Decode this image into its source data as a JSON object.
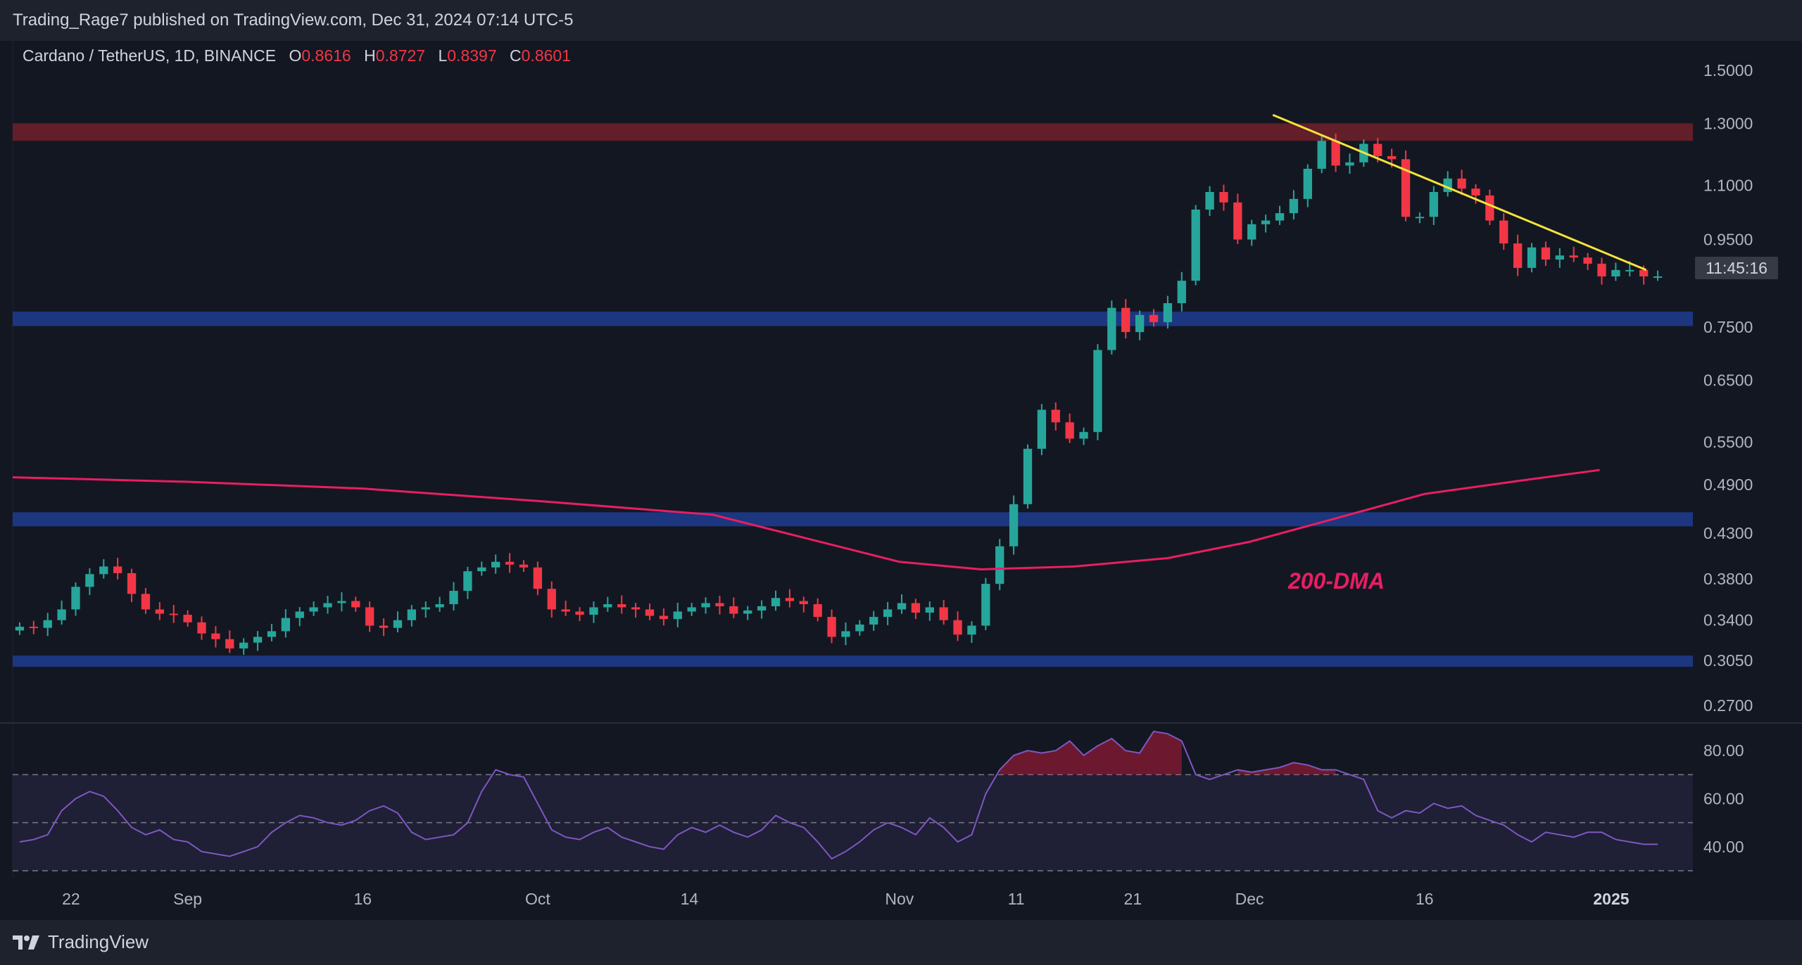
{
  "header": {
    "text": "Trading_Rage7 published on TradingView.com, Dec 31, 2024 07:14 UTC-5"
  },
  "symbol": {
    "name": "Cardano / TetherUS, 1D, BINANCE",
    "o_label": "O",
    "o": "0.8616",
    "h_label": "H",
    "h": "0.8727",
    "l_label": "L",
    "l": "0.8397",
    "c_label": "C",
    "c": "0.8601"
  },
  "countdown": "11:45:16",
  "annotation": "200-DMA",
  "footer": {
    "brand": "TradingView"
  },
  "colors": {
    "up": "#26a69a",
    "down": "#f23645",
    "ma": "#e91e63",
    "trendline": "#f5e33b",
    "support_zone": "#1e3a8a",
    "resistance_zone": "#6b1f2a",
    "rsi": "#7e57c2"
  },
  "chart_data": [
    {
      "type": "candlestick",
      "title": "Cardano / TetherUS, 1D, BINANCE",
      "y_scale": "log",
      "ylim": [
        0.26,
        1.6
      ],
      "y_ticks": [
        "1.5000",
        "1.3000",
        "1.1000",
        "0.9500",
        "0.7500",
        "0.6500",
        "0.5500",
        "0.4900",
        "0.4300",
        "0.3800",
        "0.3400",
        "0.3050",
        "0.2700"
      ],
      "x_ticks": [
        "22",
        "Sep",
        "16",
        "Oct",
        "14",
        "Nov",
        "11",
        "21",
        "Dec",
        "16",
        "2025"
      ],
      "x_tick_dates": [
        "2024-08-22",
        "2024-09-01",
        "2024-09-16",
        "2024-10-01",
        "2024-10-14",
        "2024-11-01",
        "2024-11-11",
        "2024-11-21",
        "2024-12-01",
        "2024-12-16",
        "2025-01-01"
      ],
      "x_range": [
        "2024-08-17",
        "2025-01-08"
      ],
      "candles_close": [
        0.334,
        0.333,
        0.34,
        0.35,
        0.372,
        0.385,
        0.393,
        0.386,
        0.365,
        0.35,
        0.346,
        0.345,
        0.338,
        0.328,
        0.323,
        0.315,
        0.32,
        0.325,
        0.33,
        0.342,
        0.348,
        0.352,
        0.356,
        0.358,
        0.352,
        0.335,
        0.333,
        0.34,
        0.35,
        0.352,
        0.355,
        0.368,
        0.388,
        0.392,
        0.398,
        0.395,
        0.392,
        0.37,
        0.35,
        0.348,
        0.345,
        0.352,
        0.355,
        0.352,
        0.35,
        0.344,
        0.341,
        0.348,
        0.352,
        0.356,
        0.353,
        0.346,
        0.349,
        0.353,
        0.361,
        0.358,
        0.355,
        0.343,
        0.325,
        0.33,
        0.336,
        0.343,
        0.35,
        0.356,
        0.347,
        0.352,
        0.34,
        0.327,
        0.335,
        0.375,
        0.415,
        0.465,
        0.54,
        0.6,
        0.58,
        0.555,
        0.565,
        0.705,
        0.79,
        0.74,
        0.775,
        0.76,
        0.8,
        0.85,
        1.03,
        1.08,
        1.05,
        0.95,
        0.99,
        1.0,
        1.02,
        1.06,
        1.15,
        1.24,
        1.16,
        1.17,
        1.23,
        1.19,
        1.18,
        1.01,
        1.01,
        1.08,
        1.12,
        1.09,
        1.07,
        1.0,
        0.94,
        0.88,
        0.93,
        0.9,
        0.91,
        0.905,
        0.89,
        0.86,
        0.875,
        0.875,
        0.86,
        0.86
      ],
      "annotations": {
        "horizontal_zones": [
          [
            1.24,
            1.3
          ],
          [
            0.752,
            0.782
          ],
          [
            0.438,
            0.455
          ],
          [
            0.301,
            0.309
          ]
        ],
        "trendline": [
          [
            "2024-12-03",
            1.33
          ],
          [
            "2025-01-04",
            0.875
          ]
        ]
      }
    },
    {
      "type": "line",
      "series_label": "200-DMA",
      "x": [
        "2024-08-17",
        "2024-09-01",
        "2024-09-16",
        "2024-10-01",
        "2024-10-16",
        "2024-11-01",
        "2024-11-08",
        "2024-11-16",
        "2024-11-24",
        "2024-12-01",
        "2024-12-08",
        "2024-12-16",
        "2024-12-24",
        "2024-12-31"
      ],
      "values": [
        0.5,
        0.494,
        0.485,
        0.469,
        0.452,
        0.398,
        0.39,
        0.393,
        0.402,
        0.42,
        0.446,
        0.478,
        0.495,
        0.51
      ]
    },
    {
      "type": "line",
      "title": "RSI",
      "ylim": [
        30,
        90
      ],
      "y_ticks": [
        "80.00",
        "60.00",
        "40.00"
      ],
      "levels": [
        70,
        50,
        30
      ],
      "values": [
        42,
        43,
        45,
        55,
        60,
        63,
        61,
        55,
        48,
        45,
        47,
        43,
        42,
        38,
        37,
        36,
        38,
        40,
        46,
        50,
        53,
        52,
        50,
        49,
        51,
        55,
        57,
        54,
        46,
        43,
        44,
        45,
        50,
        63,
        72,
        70,
        69,
        58,
        47,
        44,
        43,
        46,
        48,
        44,
        42,
        40,
        39,
        45,
        48,
        46,
        49,
        46,
        44,
        47,
        53,
        50,
        48,
        42,
        35,
        38,
        42,
        47,
        50,
        48,
        45,
        52,
        48,
        42,
        45,
        62,
        72,
        78,
        80,
        79,
        80,
        84,
        78,
        82,
        85,
        80,
        79,
        88,
        87,
        84,
        70,
        68,
        70,
        72,
        71,
        72,
        73,
        75,
        74,
        72,
        72,
        70,
        68,
        55,
        52,
        55,
        54,
        58,
        56,
        57,
        53,
        51,
        49,
        45,
        42,
        46,
        45,
        44,
        46,
        46,
        43,
        42,
        41,
        41
      ]
    }
  ]
}
